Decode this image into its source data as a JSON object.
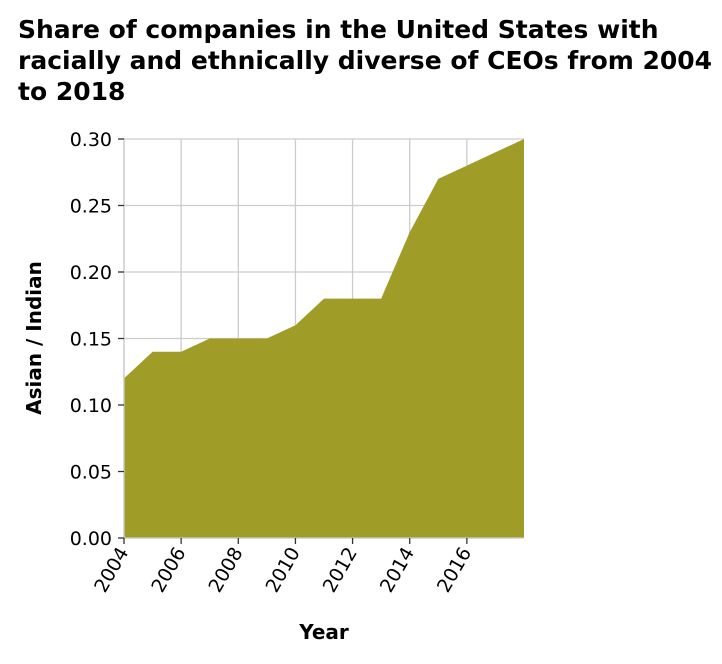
{
  "chart_data": {
    "type": "area",
    "title": "Share of companies in the United States with racially and ethnically diverse of CEOs from 2004 to 2018",
    "xlabel": "Year",
    "ylabel": "Asian / Indian",
    "xlim": [
      2004,
      2018
    ],
    "ylim": [
      0,
      0.3
    ],
    "x_ticks": [
      "2004",
      "2006",
      "2008",
      "2010",
      "2012",
      "2014",
      "2016"
    ],
    "y_ticks": [
      "0.00",
      "0.05",
      "0.10",
      "0.15",
      "0.20",
      "0.25",
      "0.30"
    ],
    "grid": true,
    "series": [
      {
        "x": [
          2004,
          2005,
          2006,
          2007,
          2008,
          2009,
          2010,
          2011,
          2012,
          2013,
          2014,
          2015,
          2016,
          2017,
          2018
        ],
        "values": [
          0.12,
          0.14,
          0.14,
          0.15,
          0.15,
          0.15,
          0.16,
          0.18,
          0.18,
          0.18,
          0.23,
          0.27,
          0.28,
          0.29,
          0.3
        ]
      }
    ],
    "fill_color": "#a09c28"
  }
}
